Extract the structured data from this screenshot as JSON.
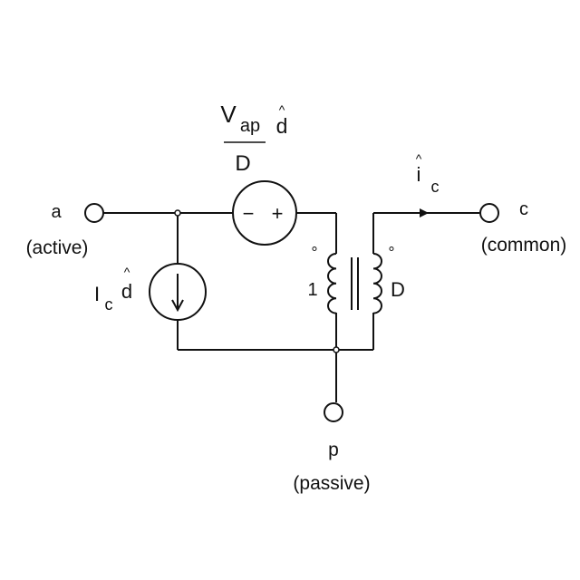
{
  "terminals": {
    "active": {
      "letter": "a",
      "name": "(active)"
    },
    "common": {
      "letter": "c",
      "name": "(common)"
    },
    "passive": {
      "letter": "p",
      "name": "(passive)"
    }
  },
  "voltage_source": {
    "numerator_v": "V",
    "numerator_sub": "ap",
    "numerator_d": "d",
    "hat": "^",
    "denominator": "D",
    "minus": "−",
    "plus": "+"
  },
  "current_source": {
    "i": "I",
    "sub": "c",
    "d": "d",
    "hat": "^"
  },
  "output_current": {
    "i": "i",
    "sub": "c",
    "hat": "^"
  },
  "transformer": {
    "primary_turns": "1",
    "secondary_turns": "D",
    "dot": "°"
  }
}
